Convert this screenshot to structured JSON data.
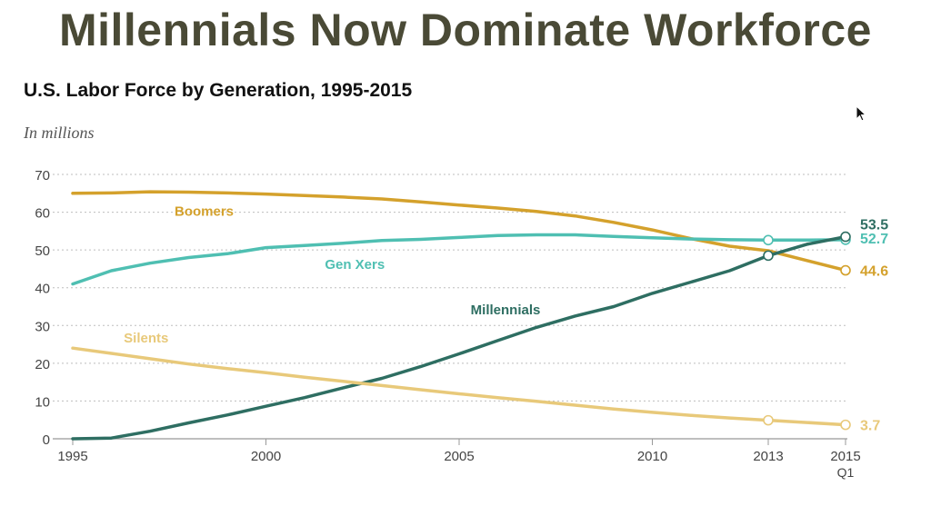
{
  "headline": "Millennials Now Dominate Workforce",
  "chart_data": {
    "type": "line",
    "title": "U.S. Labor Force by Generation, 1995-2015",
    "subtitle": "In millions",
    "xlabel": "",
    "ylabel": "",
    "xlim": [
      1995,
      2015
    ],
    "ylim": [
      0,
      70
    ],
    "y_ticks": [
      0,
      10,
      20,
      30,
      40,
      50,
      60,
      70
    ],
    "x_ticks": [
      {
        "value": 1995,
        "label": "1995",
        "sublabel": ""
      },
      {
        "value": 2000,
        "label": "2000",
        "sublabel": ""
      },
      {
        "value": 2005,
        "label": "2005",
        "sublabel": ""
      },
      {
        "value": 2010,
        "label": "2010",
        "sublabel": ""
      },
      {
        "value": 2013,
        "label": "2013",
        "sublabel": ""
      },
      {
        "value": 2015,
        "label": "2015",
        "sublabel": "Q1"
      }
    ],
    "grid": "horizontal-dotted",
    "series": [
      {
        "name": "Boomers",
        "color": "#d4a12c",
        "x": [
          1995,
          1996,
          1997,
          1998,
          1999,
          2000,
          2001,
          2002,
          2003,
          2004,
          2005,
          2006,
          2007,
          2008,
          2009,
          2010,
          2011,
          2012,
          2013,
          2014,
          2015
        ],
        "y": [
          65.0,
          65.1,
          65.4,
          65.3,
          65.1,
          64.8,
          64.4,
          64.0,
          63.5,
          62.7,
          61.9,
          61.1,
          60.2,
          59.0,
          57.3,
          55.3,
          53.0,
          51.0,
          49.8,
          47.2,
          44.6
        ],
        "markers_at": [
          2015
        ],
        "end_label": "44.6"
      },
      {
        "name": "Gen Xers",
        "color": "#4fbfb2",
        "x": [
          1995,
          1996,
          1997,
          1998,
          1999,
          2000,
          2001,
          2002,
          2003,
          2004,
          2005,
          2006,
          2007,
          2008,
          2009,
          2010,
          2011,
          2012,
          2013,
          2014,
          2015
        ],
        "y": [
          41.0,
          44.5,
          46.5,
          48.0,
          49.0,
          50.6,
          51.2,
          51.8,
          52.5,
          52.8,
          53.3,
          53.8,
          54.0,
          54.0,
          53.6,
          53.2,
          52.9,
          52.7,
          52.6,
          52.6,
          52.7
        ],
        "markers_at": [
          2013,
          2015
        ],
        "end_label": "52.7"
      },
      {
        "name": "Millennials",
        "color": "#2e6e62",
        "x": [
          1995,
          1996,
          1997,
          1998,
          1999,
          2000,
          2001,
          2002,
          2003,
          2004,
          2005,
          2006,
          2007,
          2008,
          2009,
          2010,
          2011,
          2012,
          2013,
          2014,
          2015
        ],
        "y": [
          0.0,
          0.2,
          2.0,
          4.2,
          6.3,
          8.6,
          10.9,
          13.5,
          16.0,
          19.1,
          22.5,
          26.0,
          29.5,
          32.5,
          35.0,
          38.5,
          41.5,
          44.5,
          48.5,
          51.5,
          53.5
        ],
        "markers_at": [
          2013,
          2015
        ],
        "end_label": "53.5"
      },
      {
        "name": "Silents",
        "color": "#e8c97a",
        "x": [
          1995,
          1996,
          1997,
          1998,
          1999,
          2000,
          2001,
          2002,
          2003,
          2004,
          2005,
          2006,
          2007,
          2008,
          2009,
          2010,
          2011,
          2012,
          2013,
          2014,
          2015
        ],
        "y": [
          24.0,
          22.6,
          21.2,
          19.8,
          18.6,
          17.5,
          16.3,
          15.2,
          14.1,
          13.0,
          11.9,
          10.9,
          9.9,
          8.9,
          7.9,
          7.0,
          6.2,
          5.5,
          4.9,
          4.3,
          3.7
        ],
        "markers_at": [
          2013,
          2015
        ],
        "end_label": "3.7"
      }
    ],
    "annotations": [
      {
        "series": "Boomers",
        "text": "Boomers",
        "x": 1998.4,
        "y": 59.0
      },
      {
        "series": "Gen Xers",
        "text": "Gen Xers",
        "x": 2002.3,
        "y": 45.0
      },
      {
        "series": "Millennials",
        "text": "Millennials",
        "x": 2006.2,
        "y": 33.0
      },
      {
        "series": "Silents",
        "text": "Silents",
        "x": 1996.9,
        "y": 25.5
      }
    ]
  }
}
